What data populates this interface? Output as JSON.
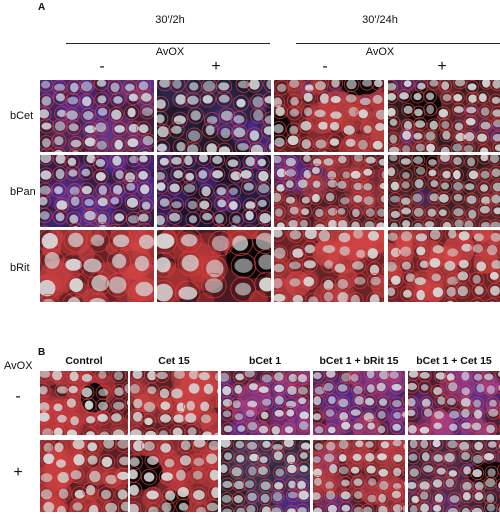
{
  "panelA": {
    "letter": "A",
    "time_headers": [
      "30′/2h",
      "30′/24h"
    ],
    "avox_label": "AvOX",
    "signs": [
      "-",
      "+",
      "-",
      "+"
    ],
    "row_labels": [
      "bCet",
      "bPan",
      "bRit"
    ]
  },
  "panelB": {
    "letter": "B",
    "avox_label": "AvOX",
    "column_headers": [
      "Control",
      "Cet 15",
      "bCet 1",
      "bCet 1 + bRit 15",
      "bCet 1 + Cet 15"
    ],
    "row_signs": [
      "-",
      "+"
    ]
  },
  "colors": {
    "nuclei": "#d9d9d9",
    "membrane": "#e23a3a",
    "cytoplasm_blue": "#4a2fa0",
    "background": "#ffffff"
  }
}
